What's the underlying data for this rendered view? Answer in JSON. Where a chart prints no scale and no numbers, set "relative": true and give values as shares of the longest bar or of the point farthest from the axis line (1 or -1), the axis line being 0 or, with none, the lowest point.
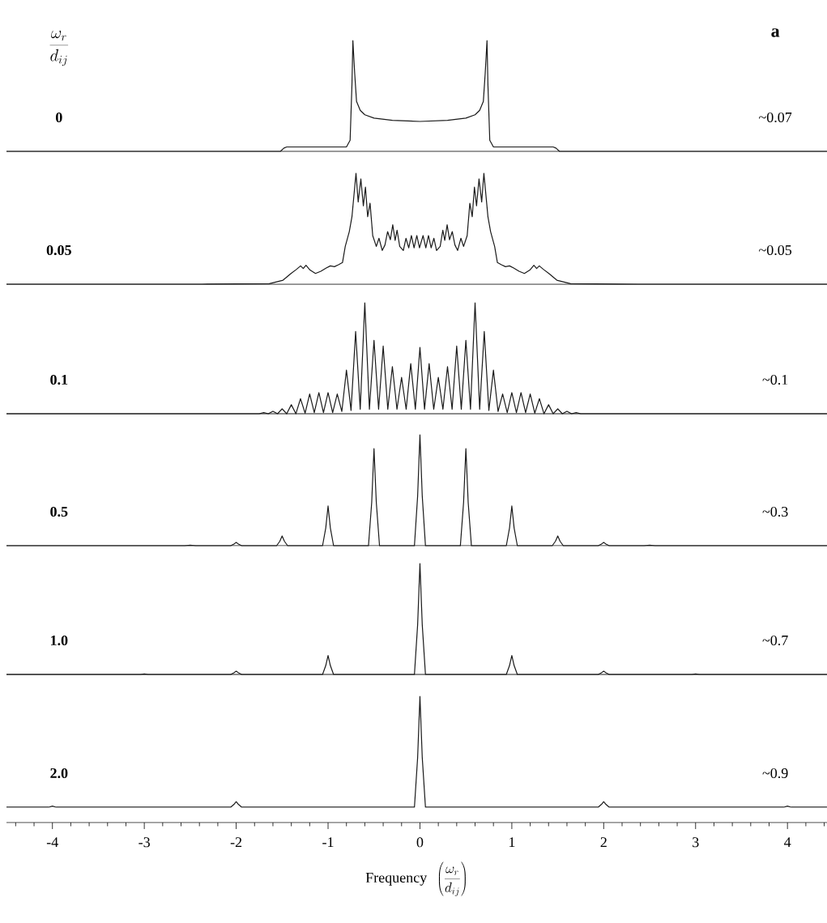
{
  "chart_data": [
    {
      "type": "line",
      "title": "0",
      "ylabel": "\\frac{\\omega_r}{d_{ij}}",
      "annotations": [
        "~0.07",
        "a"
      ],
      "relative": true,
      "tick_labels": false,
      "xlim": [
        -4.5,
        4.43
      ],
      "color": "#1a1a1a",
      "x": [
        -4.5,
        -1.52,
        -1.48,
        -1.45,
        -0.8,
        -0.76,
        -0.74,
        -0.73,
        -0.71,
        -0.69,
        -0.65,
        -0.6,
        -0.5,
        -0.3,
        0,
        0.3,
        0.5,
        0.6,
        0.65,
        0.69,
        0.71,
        0.73,
        0.74,
        0.76,
        0.8,
        1.45,
        1.48,
        1.52,
        4.43
      ],
      "values": [
        0,
        0,
        0.03,
        0.04,
        0.04,
        0.1,
        0.6,
        1.0,
        0.7,
        0.45,
        0.37,
        0.33,
        0.3,
        0.28,
        0.27,
        0.28,
        0.3,
        0.33,
        0.37,
        0.45,
        0.7,
        1.0,
        0.6,
        0.1,
        0.04,
        0.04,
        0.03,
        0,
        0
      ]
    },
    {
      "type": "line",
      "title": "0.05",
      "annotations": [
        "~0.05"
      ],
      "relative": true,
      "tick_labels": false,
      "xlim": [
        -4.5,
        4.43
      ],
      "color": "#1a1a1a",
      "x": [
        -4.5,
        -2.37,
        -1.64,
        -1.49,
        -1.403,
        -1.343,
        -1.299,
        -1.27,
        -1.24,
        -1.196,
        -1.137,
        -1.078,
        -1.02,
        -0.975,
        -0.931,
        -0.887,
        -0.843,
        -0.813,
        -0.769,
        -0.74,
        -0.696,
        -0.672,
        -0.643,
        -0.616,
        -0.593,
        -0.569,
        -0.543,
        -0.514,
        -0.475,
        -0.446,
        -0.41,
        -0.381,
        -0.352,
        -0.322,
        -0.296,
        -0.27,
        -0.249,
        -0.22,
        -0.181,
        -0.152,
        -0.122,
        -0.093,
        -0.064,
        -0.034,
        -0.005,
        0.034,
        0.064,
        0.093,
        0.122,
        0.152,
        0.181,
        0.22,
        0.249,
        0.27,
        0.296,
        0.322,
        0.352,
        0.381,
        0.41,
        0.446,
        0.475,
        0.514,
        0.543,
        0.569,
        0.593,
        0.616,
        0.643,
        0.672,
        0.696,
        0.74,
        0.769,
        0.813,
        0.843,
        0.887,
        0.931,
        0.975,
        1.02,
        1.078,
        1.137,
        1.196,
        1.24,
        1.27,
        1.299,
        1.343,
        1.403,
        1.49,
        1.64,
        2.37,
        4.43
      ],
      "values": [
        0,
        0,
        0.005,
        0.036,
        0.097,
        0.134,
        0.165,
        0.141,
        0.17,
        0.127,
        0.097,
        0.117,
        0.146,
        0.165,
        0.158,
        0.175,
        0.195,
        0.34,
        0.474,
        0.608,
        1.0,
        0.742,
        0.949,
        0.706,
        0.876,
        0.608,
        0.73,
        0.438,
        0.34,
        0.414,
        0.304,
        0.353,
        0.474,
        0.401,
        0.535,
        0.394,
        0.487,
        0.34,
        0.304,
        0.414,
        0.328,
        0.438,
        0.328,
        0.438,
        0.328,
        0.438,
        0.328,
        0.438,
        0.328,
        0.414,
        0.304,
        0.34,
        0.487,
        0.394,
        0.535,
        0.401,
        0.474,
        0.353,
        0.304,
        0.414,
        0.34,
        0.438,
        0.73,
        0.608,
        0.876,
        0.706,
        0.949,
        0.742,
        1.0,
        0.608,
        0.474,
        0.34,
        0.195,
        0.175,
        0.158,
        0.165,
        0.146,
        0.117,
        0.097,
        0.127,
        0.17,
        0.141,
        0.165,
        0.134,
        0.097,
        0.036,
        0.005,
        0,
        0
      ]
    },
    {
      "type": "line",
      "title": "0.1",
      "annotations": [
        "~0.1"
      ],
      "relative": true,
      "tick_labels": false,
      "xlim": [
        -4.5,
        4.43
      ],
      "color": "#1a1a1a",
      "x": [
        -4.5,
        -1.85,
        -1.8,
        -1.75,
        -1.7,
        -1.65,
        -1.6,
        -1.55,
        -1.5,
        -1.45,
        -1.4,
        -1.35,
        -1.3,
        -1.25,
        -1.2,
        -1.15,
        -1.1,
        -1.05,
        -1.0,
        -0.95,
        -0.9,
        -0.85,
        -0.8,
        -0.75,
        -0.7,
        -0.65,
        -0.6,
        -0.55,
        -0.5,
        -0.45,
        -0.4,
        -0.35,
        -0.3,
        -0.25,
        -0.2,
        -0.15,
        -0.1,
        -0.05,
        0,
        0.05,
        0.1,
        0.15,
        0.2,
        0.25,
        0.3,
        0.35,
        0.4,
        0.45,
        0.5,
        0.55,
        0.6,
        0.65,
        0.7,
        0.75,
        0.8,
        0.85,
        0.9,
        0.95,
        1.0,
        1.05,
        1.1,
        1.15,
        1.2,
        1.25,
        1.3,
        1.35,
        1.4,
        1.45,
        1.5,
        1.55,
        1.6,
        1.65,
        1.7,
        1.75,
        1.8,
        1.85,
        4.43
      ],
      "values": [
        0,
        0,
        0,
        0,
        0.01,
        0,
        0.022,
        0,
        0.044,
        0,
        0.081,
        0,
        0.136,
        0.005,
        0.178,
        0.01,
        0.19,
        0.01,
        0.19,
        0.01,
        0.178,
        0.02,
        0.393,
        0.03,
        0.741,
        0.04,
        1.0,
        0.04,
        0.662,
        0.04,
        0.61,
        0.04,
        0.425,
        0.04,
        0.328,
        0.04,
        0.452,
        0.04,
        0.598,
        0.04,
        0.452,
        0.04,
        0.328,
        0.04,
        0.425,
        0.04,
        0.61,
        0.04,
        0.662,
        0.04,
        1.0,
        0.04,
        0.741,
        0.03,
        0.393,
        0.02,
        0.178,
        0.01,
        0.19,
        0.01,
        0.19,
        0.01,
        0.178,
        0.005,
        0.136,
        0,
        0.081,
        0,
        0.044,
        0,
        0.022,
        0,
        0.01,
        0,
        0,
        0,
        0
      ]
    },
    {
      "type": "line",
      "title": "0.5",
      "annotations": [
        "~0.3"
      ],
      "relative": true,
      "tick_labels": false,
      "xlim": [
        -4.5,
        4.43
      ],
      "color": "#1a1a1a",
      "x": [
        -4.5,
        -2.56,
        -2.5,
        -2.44,
        -2.06,
        -2.025,
        -2,
        -1.975,
        -1.94,
        -1.56,
        -1.525,
        -1.5,
        -1.475,
        -1.44,
        -1.06,
        -1.025,
        -1,
        -0.975,
        -0.94,
        -0.56,
        -0.525,
        -0.5,
        -0.475,
        -0.44,
        -0.06,
        -0.025,
        0,
        0.025,
        0.06,
        0.44,
        0.475,
        0.5,
        0.525,
        0.56,
        0.94,
        0.975,
        1,
        1.025,
        1.06,
        1.44,
        1.475,
        1.5,
        1.525,
        1.56,
        1.94,
        1.975,
        2,
        2.025,
        2.06,
        2.44,
        2.5,
        2.56,
        4.43
      ],
      "values": [
        0,
        0,
        0.005,
        0,
        0,
        0.015,
        0.03,
        0.015,
        0,
        0,
        0.04,
        0.088,
        0.04,
        0,
        0,
        0.16,
        0.358,
        0.16,
        0,
        0,
        0.39,
        0.876,
        0.39,
        0,
        0,
        0.45,
        1.0,
        0.45,
        0,
        0,
        0.39,
        0.876,
        0.39,
        0,
        0,
        0.16,
        0.358,
        0.16,
        0,
        0,
        0.04,
        0.088,
        0.04,
        0,
        0,
        0.015,
        0.03,
        0.015,
        0,
        0,
        0.005,
        0,
        0
      ]
    },
    {
      "type": "line",
      "title": "1.0",
      "annotations": [
        "~0.7"
      ],
      "relative": true,
      "tick_labels": false,
      "xlim": [
        -4.5,
        4.43
      ],
      "color": "#1a1a1a",
      "x": [
        -4.5,
        -3.04,
        -3,
        -2.96,
        -2.06,
        -2.025,
        -2,
        -1.975,
        -1.94,
        -1.06,
        -1.025,
        -1,
        -0.975,
        -0.94,
        -0.06,
        -0.025,
        0,
        0.025,
        0.06,
        0.94,
        0.975,
        1,
        1.025,
        1.06,
        1.94,
        1.975,
        2,
        2.025,
        2.06,
        2.96,
        3,
        3.04,
        4.43
      ],
      "values": [
        0,
        0,
        0.005,
        0,
        0,
        0.015,
        0.03,
        0.015,
        0,
        0,
        0.08,
        0.17,
        0.08,
        0,
        0,
        0.45,
        1.0,
        0.45,
        0,
        0,
        0.08,
        0.17,
        0.08,
        0,
        0,
        0.015,
        0.03,
        0.015,
        0,
        0,
        0.005,
        0,
        0
      ]
    },
    {
      "type": "line",
      "title": "2.0",
      "annotations": [
        "~0.9"
      ],
      "relative": true,
      "tick_labels": "x",
      "xlim": [
        -4.5,
        4.43
      ],
      "color": "#1a1a1a",
      "xlabel": "\\mathrm{Frequency}\\ \\ \\left(\\frac{\\omega_r}{d_{ij}}\\right)",
      "xticks": [
        -4,
        -3,
        -2,
        -1,
        0,
        1,
        2,
        3,
        4,
        {
          "value": -4.4,
          "label": null
        },
        {
          "value": -4.2,
          "label": null
        },
        {
          "value": -3.8,
          "label": null
        },
        {
          "value": -3.6,
          "label": null
        },
        {
          "value": -3.4,
          "label": null
        },
        {
          "value": -3.2,
          "label": null
        },
        {
          "value": -2.8,
          "label": null
        },
        {
          "value": -2.6,
          "label": null
        },
        {
          "value": -2.4,
          "label": null
        },
        {
          "value": -2.2,
          "label": null
        },
        {
          "value": -1.8,
          "label": null
        },
        {
          "value": -1.6,
          "label": null
        },
        {
          "value": -1.4,
          "label": null
        },
        {
          "value": -1.2,
          "label": null
        },
        {
          "value": -0.8,
          "label": null
        },
        {
          "value": -0.6,
          "label": null
        },
        {
          "value": -0.4,
          "label": null
        },
        {
          "value": -0.2,
          "label": null
        },
        {
          "value": 0.2,
          "label": null
        },
        {
          "value": 0.4,
          "label": null
        },
        {
          "value": 0.6,
          "label": null
        },
        {
          "value": 0.8,
          "label": null
        },
        {
          "value": 1.2,
          "label": null
        },
        {
          "value": 1.4,
          "label": null
        },
        {
          "value": 1.6,
          "label": null
        },
        {
          "value": 1.8,
          "label": null
        },
        {
          "value": 2.2,
          "label": null
        },
        {
          "value": 2.4,
          "label": null
        },
        {
          "value": 2.6,
          "label": null
        },
        {
          "value": 2.8,
          "label": null
        },
        {
          "value": 3.2,
          "label": null
        },
        {
          "value": 3.4,
          "label": null
        },
        {
          "value": 3.6,
          "label": null
        },
        {
          "value": 3.8,
          "label": null
        },
        {
          "value": 4.2,
          "label": null
        },
        {
          "value": 4.4,
          "label": null
        }
      ],
      "x": [
        -4.5,
        -4.04,
        -4,
        -3.96,
        -2.06,
        -2.025,
        -2,
        -1.975,
        -1.94,
        -0.06,
        -0.025,
        0,
        0.025,
        0.06,
        1.94,
        1.975,
        2,
        2.025,
        2.06,
        3.96,
        4,
        4.04,
        4.43
      ],
      "values": [
        0.122,
        0.122,
        0.131,
        0.122,
        0.122,
        0.144,
        0.166,
        0.144,
        0.122,
        0.122,
        0.517,
        1.0,
        0.517,
        0.122,
        0.122,
        0.144,
        0.166,
        0.144,
        0.122,
        0.122,
        0.131,
        0.122,
        0.122
      ]
    }
  ]
}
